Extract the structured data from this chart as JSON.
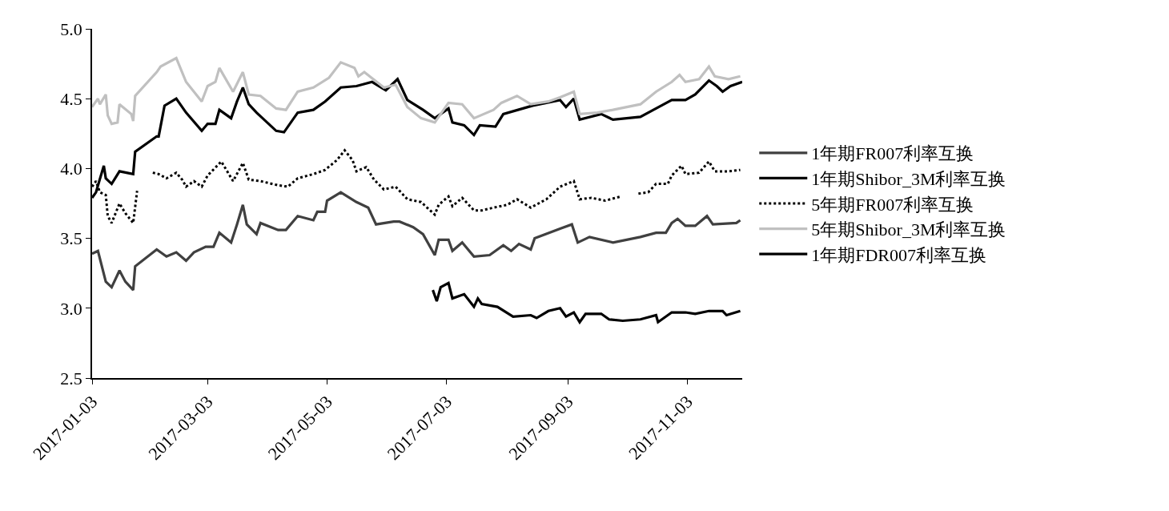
{
  "chart_data": {
    "type": "line",
    "xlim": [
      "2017-01-03",
      "2017-12-01"
    ],
    "xticks": [
      "2017-01-03",
      "2017-03-03",
      "2017-05-03",
      "2017-07-03",
      "2017-09-03",
      "2017-11-03"
    ],
    "ylim": [
      2.5,
      5.0
    ],
    "yticks": [
      {
        "value": 2.5,
        "label": "2.5"
      },
      {
        "value": 3.0,
        "label": "3.0"
      },
      {
        "value": 3.5,
        "label": "3.5"
      },
      {
        "value": 4.0,
        "label": "4.0"
      },
      {
        "value": 4.5,
        "label": "4.5"
      },
      {
        "value": 5.0,
        "label": "5.0"
      }
    ],
    "legend": "right",
    "line_style": "solid",
    "series": [
      {
        "name": "1年期FR007利率互换",
        "color": "#404040",
        "x": [
          "2017-01-03",
          "2017-01-06",
          "2017-01-10",
          "2017-01-13",
          "2017-01-17",
          "2017-01-20",
          "2017-01-24",
          "2017-01-25",
          "2017-02-05",
          "2017-02-10",
          "2017-02-15",
          "2017-02-20",
          "2017-02-24",
          "2017-03-02",
          "2017-03-06",
          "2017-03-09",
          "2017-03-15",
          "2017-03-18",
          "2017-03-21",
          "2017-03-23",
          "2017-03-28",
          "2017-03-30",
          "2017-04-08",
          "2017-04-12",
          "2017-04-18",
          "2017-04-26",
          "2017-04-28",
          "2017-05-02",
          "2017-05-03",
          "2017-05-10",
          "2017-05-18",
          "2017-05-24",
          "2017-05-28",
          "2017-06-06",
          "2017-06-09",
          "2017-06-16",
          "2017-06-21",
          "2017-06-27",
          "2017-06-29",
          "2017-07-04",
          "2017-07-06",
          "2017-07-11",
          "2017-07-17",
          "2017-07-25",
          "2017-08-01",
          "2017-08-05",
          "2017-08-09",
          "2017-08-15",
          "2017-08-17",
          "2017-08-30",
          "2017-09-05",
          "2017-09-08",
          "2017-09-14",
          "2017-09-26",
          "2017-10-10",
          "2017-10-18",
          "2017-10-23",
          "2017-10-26",
          "2017-10-29",
          "2017-11-02",
          "2017-11-07",
          "2017-11-13",
          "2017-11-16",
          "2017-11-28",
          "2017-11-30"
        ],
        "values": [
          3.39,
          3.41,
          3.19,
          3.15,
          3.27,
          3.19,
          3.13,
          3.3,
          3.42,
          3.37,
          3.4,
          3.34,
          3.4,
          3.44,
          3.44,
          3.54,
          3.47,
          3.6,
          3.74,
          3.6,
          3.53,
          3.61,
          3.56,
          3.56,
          3.66,
          3.63,
          3.69,
          3.69,
          3.77,
          3.83,
          3.76,
          3.72,
          3.6,
          3.62,
          3.62,
          3.58,
          3.53,
          3.38,
          3.49,
          3.49,
          3.41,
          3.47,
          3.37,
          3.38,
          3.45,
          3.41,
          3.46,
          3.42,
          3.5,
          3.57,
          3.6,
          3.47,
          3.51,
          3.47,
          3.51,
          3.54,
          3.54,
          3.61,
          3.64,
          3.59,
          3.59,
          3.66,
          3.6,
          3.61,
          3.63
        ]
      },
      {
        "name": "1年期Shibor_3M利率互换",
        "color": "#000000",
        "x": [
          "2017-01-03",
          "2017-01-05",
          "2017-01-09",
          "2017-01-10",
          "2017-01-13",
          "2017-01-17",
          "2017-01-24",
          "2017-01-25",
          "2017-02-05",
          "2017-02-06",
          "2017-02-09",
          "2017-02-15",
          "2017-02-20",
          "2017-02-28",
          "2017-03-03",
          "2017-03-07",
          "2017-03-09",
          "2017-03-15",
          "2017-03-18",
          "2017-03-21",
          "2017-03-24",
          "2017-03-28",
          "2017-04-07",
          "2017-04-11",
          "2017-04-18",
          "2017-04-26",
          "2017-05-02",
          "2017-05-10",
          "2017-05-18",
          "2017-05-26",
          "2017-06-02",
          "2017-06-08",
          "2017-06-13",
          "2017-06-21",
          "2017-06-27",
          "2017-07-04",
          "2017-07-06",
          "2017-07-12",
          "2017-07-17",
          "2017-07-20",
          "2017-07-28",
          "2017-08-01",
          "2017-08-16",
          "2017-08-30",
          "2017-09-02",
          "2017-09-06",
          "2017-09-09",
          "2017-09-20",
          "2017-09-26",
          "2017-10-10",
          "2017-10-18",
          "2017-10-26",
          "2017-11-02",
          "2017-11-07",
          "2017-11-14",
          "2017-11-18",
          "2017-11-21",
          "2017-11-25",
          "2017-12-01"
        ],
        "values": [
          3.79,
          3.83,
          4.02,
          3.93,
          3.89,
          3.98,
          3.96,
          4.12,
          4.23,
          4.23,
          4.45,
          4.5,
          4.4,
          4.27,
          4.32,
          4.32,
          4.42,
          4.36,
          4.48,
          4.58,
          4.46,
          4.4,
          4.27,
          4.26,
          4.4,
          4.42,
          4.48,
          4.58,
          4.59,
          4.62,
          4.56,
          4.64,
          4.49,
          4.42,
          4.36,
          4.43,
          4.33,
          4.31,
          4.24,
          4.31,
          4.3,
          4.39,
          4.45,
          4.49,
          4.44,
          4.5,
          4.35,
          4.39,
          4.35,
          4.37,
          4.43,
          4.49,
          4.49,
          4.53,
          4.63,
          4.59,
          4.55,
          4.59,
          4.62
        ]
      },
      {
        "name": "5年期FR007利率互换",
        "color": "#000000",
        "line_style": "dotted",
        "x": [
          "2017-01-03",
          "2017-01-05",
          "2017-01-07",
          "2017-01-10",
          "2017-01-11",
          "2017-01-13",
          "2017-01-17",
          "2017-01-20",
          "2017-01-24",
          "2017-01-26",
          "2017-01-30",
          "2017-02-03",
          "2017-02-06",
          "2017-02-10",
          "2017-02-15",
          "2017-02-18",
          "2017-02-20",
          "2017-02-24",
          "2017-02-28",
          "2017-03-03",
          "2017-03-10",
          "2017-03-16",
          "2017-03-21",
          "2017-03-24",
          "2017-03-30",
          "2017-04-08",
          "2017-04-13",
          "2017-04-18",
          "2017-04-26",
          "2017-05-02",
          "2017-05-08",
          "2017-05-12",
          "2017-05-16",
          "2017-05-18",
          "2017-05-23",
          "2017-05-27",
          "2017-06-01",
          "2017-06-07",
          "2017-06-13",
          "2017-06-20",
          "2017-06-27",
          "2017-06-29",
          "2017-07-04",
          "2017-07-06",
          "2017-07-11",
          "2017-07-17",
          "2017-07-21",
          "2017-07-27",
          "2017-08-03",
          "2017-08-08",
          "2017-08-15",
          "2017-08-23",
          "2017-08-30",
          "2017-09-06",
          "2017-09-09",
          "2017-09-15",
          "2017-09-22",
          "2017-09-30",
          "2017-10-05",
          "2017-10-09",
          "2017-10-14",
          "2017-10-18",
          "2017-10-24",
          "2017-10-26",
          "2017-10-31",
          "2017-11-02",
          "2017-11-09",
          "2017-11-14",
          "2017-11-17",
          "2017-11-24",
          "2017-11-30"
        ],
        "values": [
          3.87,
          3.91,
          3.83,
          3.81,
          3.66,
          3.61,
          3.75,
          3.68,
          3.61,
          3.84,
          null,
          3.97,
          3.96,
          3.93,
          3.97,
          3.92,
          3.87,
          3.91,
          3.87,
          3.95,
          4.05,
          3.91,
          4.04,
          3.92,
          3.91,
          3.88,
          3.87,
          3.93,
          3.96,
          3.99,
          4.06,
          4.13,
          4.06,
          3.98,
          4.01,
          3.92,
          3.85,
          3.87,
          3.78,
          3.76,
          3.67,
          3.74,
          3.8,
          3.73,
          3.79,
          3.7,
          3.7,
          3.72,
          3.74,
          3.78,
          3.72,
          3.78,
          3.87,
          3.91,
          3.78,
          3.79,
          3.77,
          3.8,
          null,
          3.82,
          3.83,
          3.89,
          3.89,
          3.95,
          4.02,
          3.96,
          3.97,
          4.05,
          3.98,
          3.98,
          3.99
        ]
      },
      {
        "name": "5年期Shibor_3M利率互换",
        "color": "#c0c0c0",
        "x": [
          "2017-01-03",
          "2017-01-06",
          "2017-01-07",
          "2017-01-10",
          "2017-01-11",
          "2017-01-13",
          "2017-01-16",
          "2017-01-17",
          "2017-01-23",
          "2017-01-24",
          "2017-01-25",
          "2017-02-05",
          "2017-02-07",
          "2017-02-15",
          "2017-02-20",
          "2017-02-28",
          "2017-03-03",
          "2017-03-07",
          "2017-03-09",
          "2017-03-16",
          "2017-03-21",
          "2017-03-24",
          "2017-03-30",
          "2017-04-07",
          "2017-04-12",
          "2017-04-18",
          "2017-04-26",
          "2017-05-04",
          "2017-05-10",
          "2017-05-17",
          "2017-05-19",
          "2017-05-22",
          "2017-06-01",
          "2017-06-07",
          "2017-06-13",
          "2017-06-20",
          "2017-06-27",
          "2017-07-04",
          "2017-07-11",
          "2017-07-17",
          "2017-07-27",
          "2017-07-31",
          "2017-08-08",
          "2017-08-15",
          "2017-08-24",
          "2017-08-30",
          "2017-09-06",
          "2017-09-09",
          "2017-09-18",
          "2017-09-26",
          "2017-10-10",
          "2017-10-18",
          "2017-10-26",
          "2017-10-30",
          "2017-11-02",
          "2017-11-09",
          "2017-11-14",
          "2017-11-17",
          "2017-11-24",
          "2017-11-30"
        ],
        "values": [
          4.44,
          4.5,
          4.46,
          4.53,
          4.38,
          4.32,
          4.33,
          4.46,
          4.39,
          4.34,
          4.52,
          4.69,
          4.73,
          4.79,
          4.62,
          4.48,
          4.59,
          4.62,
          4.72,
          4.55,
          4.69,
          4.53,
          4.52,
          4.43,
          4.42,
          4.55,
          4.58,
          4.65,
          4.76,
          4.72,
          4.66,
          4.69,
          4.58,
          4.6,
          4.44,
          4.36,
          4.33,
          4.47,
          4.46,
          4.36,
          4.42,
          4.47,
          4.52,
          4.46,
          4.48,
          4.51,
          4.55,
          4.39,
          4.4,
          4.42,
          4.46,
          4.55,
          4.62,
          4.67,
          4.62,
          4.64,
          4.73,
          4.66,
          4.64,
          4.66
        ]
      },
      {
        "name": "1年期FDR007利率互换",
        "color": "#000000",
        "x": [
          "2017-06-26",
          "2017-06-28",
          "2017-06-30",
          "2017-07-04",
          "2017-07-06",
          "2017-07-12",
          "2017-07-17",
          "2017-07-19",
          "2017-07-21",
          "2017-07-29",
          "2017-08-06",
          "2017-08-15",
          "2017-08-18",
          "2017-08-24",
          "2017-08-30",
          "2017-09-02",
          "2017-09-06",
          "2017-09-09",
          "2017-09-12",
          "2017-09-20",
          "2017-09-24",
          "2017-10-01",
          "2017-10-10",
          "2017-10-18",
          "2017-10-19",
          "2017-10-26",
          "2017-11-02",
          "2017-11-07",
          "2017-11-14",
          "2017-11-21",
          "2017-11-23",
          "2017-11-30"
        ],
        "values": [
          3.13,
          3.05,
          3.15,
          3.18,
          3.07,
          3.1,
          3.01,
          3.07,
          3.03,
          3.01,
          2.94,
          2.95,
          2.93,
          2.98,
          3.0,
          2.94,
          2.97,
          2.9,
          2.96,
          2.96,
          2.92,
          2.91,
          2.92,
          2.95,
          2.9,
          2.97,
          2.97,
          2.96,
          2.98,
          2.98,
          2.95,
          2.98
        ]
      }
    ]
  }
}
